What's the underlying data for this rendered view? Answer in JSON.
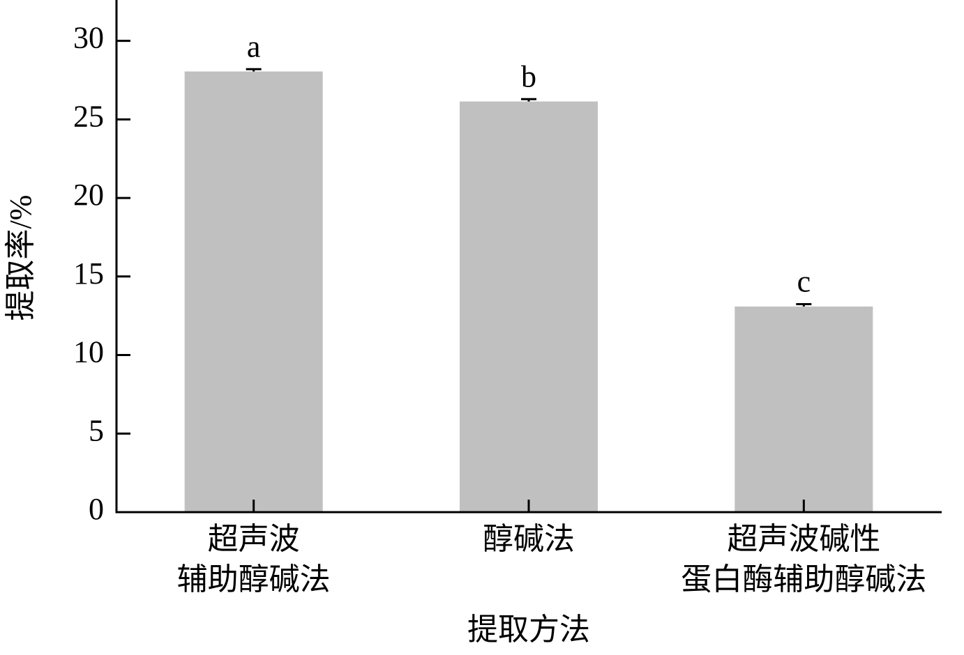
{
  "chart_data": {
    "type": "bar",
    "y_label": "提取率/%",
    "x_label": "提取方法",
    "categories": [
      "超声波\n辅助醇碱法",
      "醇碱法",
      "超声波碱性\n蛋白酶辅助醇碱法"
    ],
    "values": [
      28.05,
      26.14,
      13.09
    ],
    "errors": [
      0.15,
      0.15,
      0.15
    ],
    "annotations": [
      "a",
      "b",
      "c"
    ],
    "color": "#c0c0c0",
    "ylim": [
      0,
      32.6
    ],
    "yticks": [
      0,
      5,
      10,
      15,
      20,
      25,
      30
    ],
    "grid": false
  }
}
